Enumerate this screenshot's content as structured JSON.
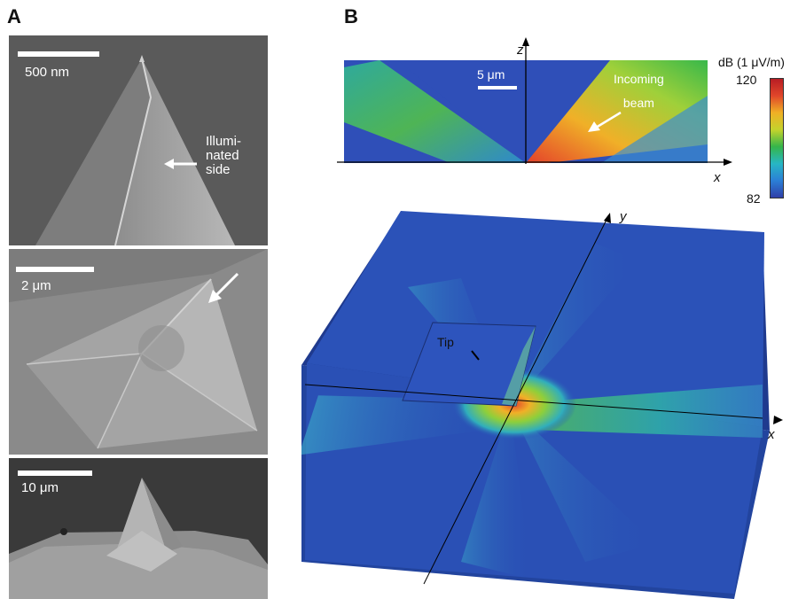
{
  "panel_a": {
    "letter": "A",
    "images": [
      {
        "scale_label": "500 nm",
        "annotation": "Illumi-\nnated\nside"
      },
      {
        "scale_label": "2 μm"
      },
      {
        "scale_label": "10 μm"
      }
    ]
  },
  "panel_b": {
    "letter": "B",
    "top_plot": {
      "z_axis_label": "z",
      "x_axis_label": "x",
      "scale_label": "5 μm",
      "annotation": "Incoming\nbeam"
    },
    "colorbar": {
      "title": "dB (1 μV/m)",
      "max_label": "120",
      "min_label": "82",
      "colors": [
        "#2f3fa8",
        "#2b7fd6",
        "#27b6c4",
        "#35b54a",
        "#c4d32c",
        "#f0b025",
        "#e0462a",
        "#b81d24"
      ]
    },
    "perspective_plot": {
      "y_axis_label": "y",
      "x_axis_label": "x",
      "tip_label": "Tip"
    }
  }
}
